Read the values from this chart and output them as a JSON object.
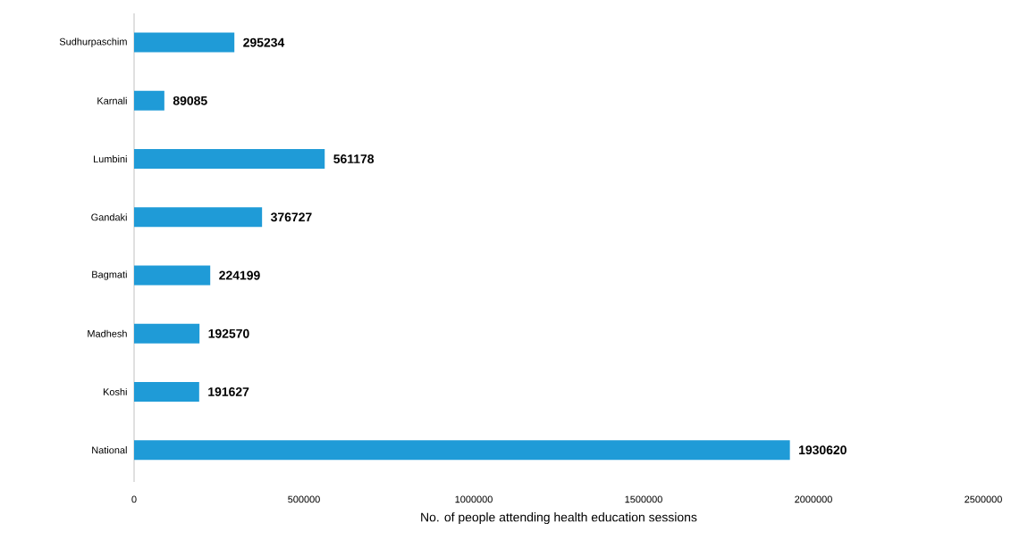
{
  "chart_data": {
    "type": "bar",
    "orientation": "horizontal",
    "xlabel": "No. of people attending health education sessions",
    "categories": [
      "Sudhurpaschim",
      "Karnali",
      "Lumbini",
      "Gandaki",
      "Bagmati",
      "Madhesh",
      "Koshi",
      "National"
    ],
    "values": [
      295234,
      89085,
      561178,
      376727,
      224199,
      192570,
      191627,
      1930620
    ],
    "color": "#1f9bd7",
    "xlim": [
      0,
      2500000
    ],
    "xticks": [
      0,
      500000,
      1000000,
      1500000,
      2000000,
      2500000
    ],
    "data_labels": true
  }
}
